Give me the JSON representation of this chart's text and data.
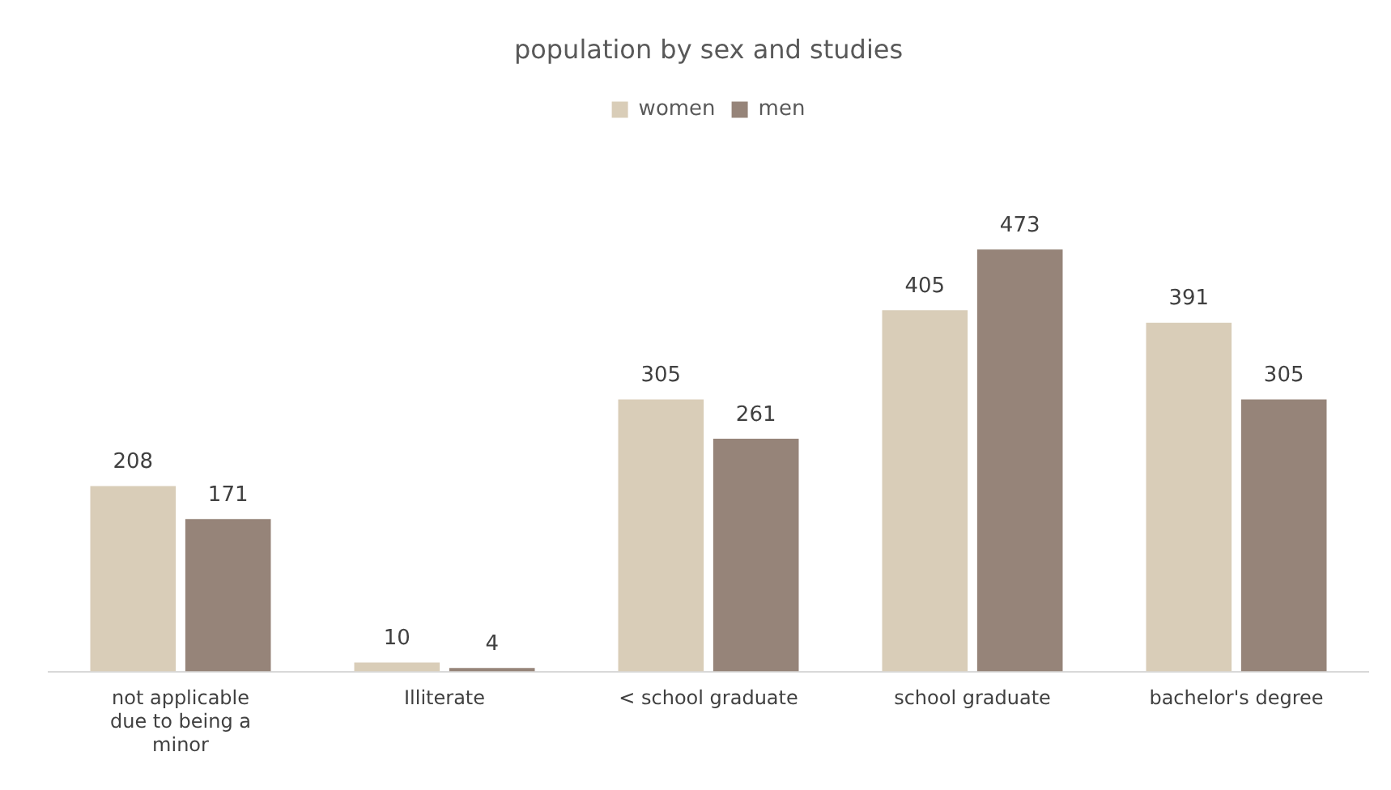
{
  "chart_data": {
    "type": "bar",
    "title": "population by sex and studies",
    "categories": [
      "not applicable due to being a minor",
      "Illiterate",
      "< school graduate",
      "school graduate",
      "bachelor's degree"
    ],
    "series": [
      {
        "name": "women",
        "color": "#d9cdb8",
        "values": [
          208,
          10,
          305,
          405,
          391
        ]
      },
      {
        "name": "men",
        "color": "#968479",
        "values": [
          171,
          4,
          261,
          473,
          305
        ]
      }
    ],
    "data_labels": true,
    "legend": "top",
    "grid": false
  }
}
